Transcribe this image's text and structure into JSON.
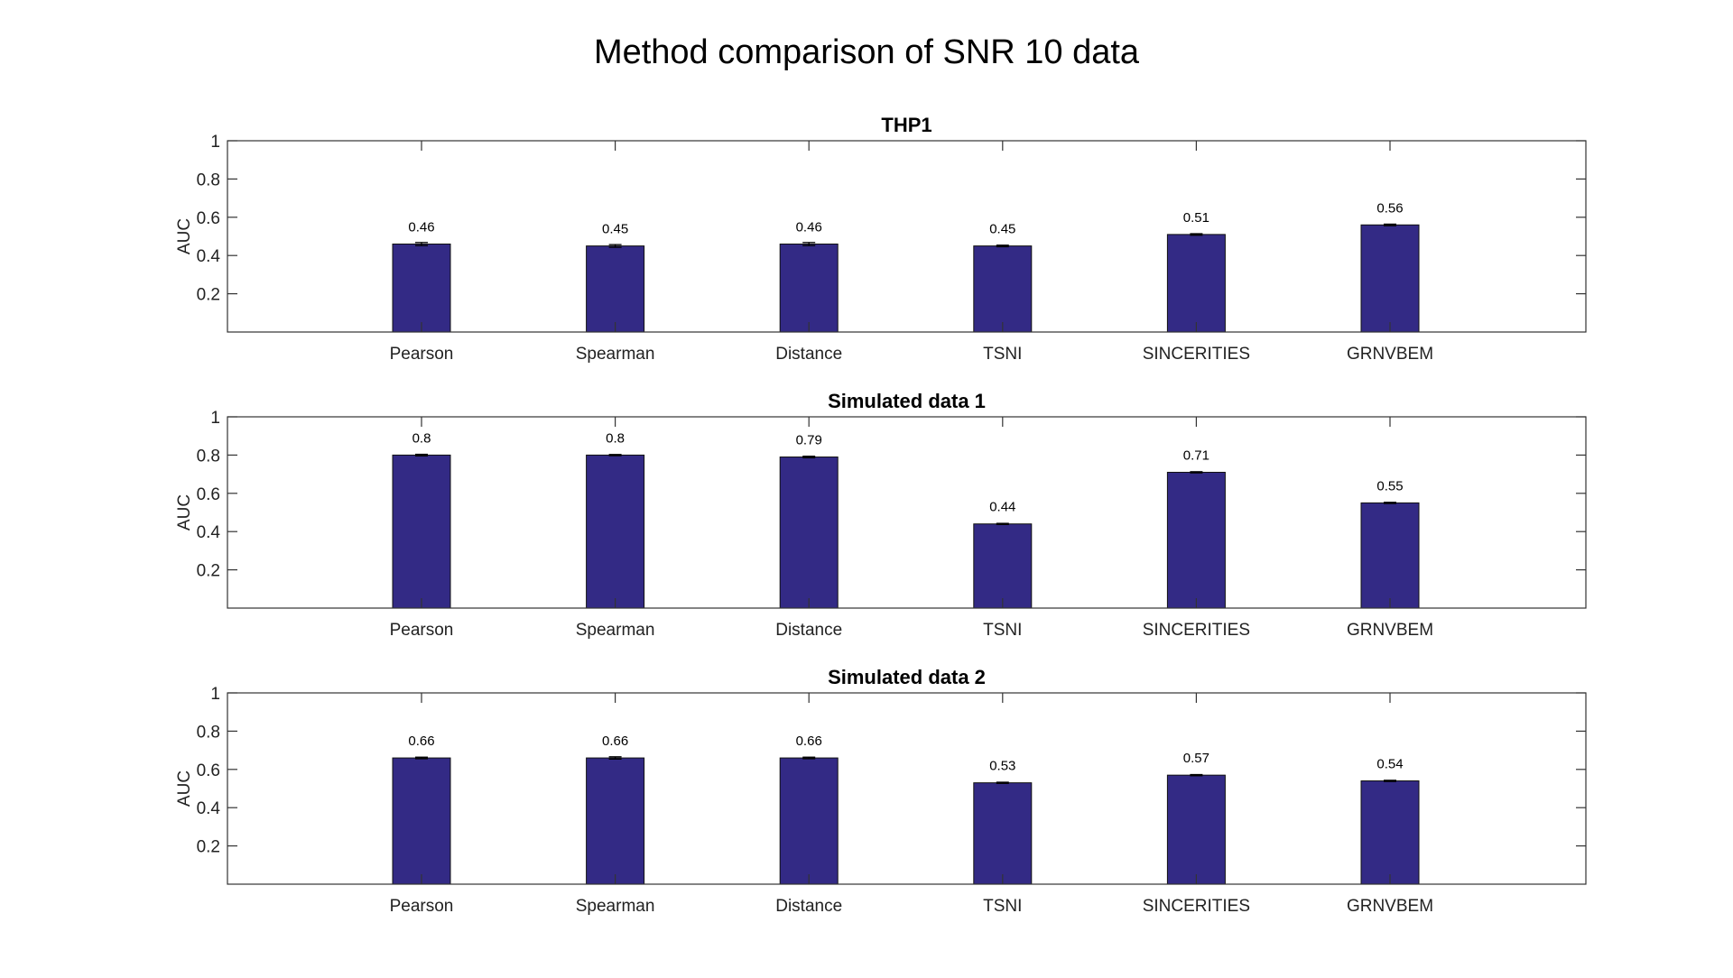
{
  "figure": {
    "title": "Method comparison of SNR 10 data"
  },
  "colors": {
    "bar": "#332a85"
  },
  "chart_data": [
    {
      "type": "bar",
      "title": "THP1",
      "xlabel": "",
      "ylabel": "AUC",
      "categories": [
        "Pearson",
        "Spearman",
        "Distance",
        "TSNI",
        "SINCERITIES",
        "GRNVBEM"
      ],
      "values": [
        0.46,
        0.45,
        0.46,
        0.45,
        0.51,
        0.56
      ],
      "data_labels": [
        "0.46",
        "0.45",
        "0.46",
        "0.45",
        "0.51",
        "0.56"
      ],
      "error": [
        0.008,
        0.007,
        0.008,
        0.004,
        0.004,
        0.004
      ],
      "ylim": [
        0,
        1
      ],
      "yticks": [
        0.2,
        0.4,
        0.6,
        0.8,
        1
      ],
      "ytick_labels": [
        "0.2",
        "0.4",
        "0.6",
        "0.8",
        "1"
      ],
      "grid": false,
      "legend": "none"
    },
    {
      "type": "bar",
      "title": "Simulated data 1",
      "xlabel": "",
      "ylabel": "AUC",
      "categories": [
        "Pearson",
        "Spearman",
        "Distance",
        "TSNI",
        "SINCERITIES",
        "GRNVBEM"
      ],
      "values": [
        0.8,
        0.8,
        0.79,
        0.44,
        0.71,
        0.55
      ],
      "data_labels": [
        "0.8",
        "0.8",
        "0.79",
        "0.44",
        "0.71",
        "0.55"
      ],
      "error": [
        0.004,
        0.003,
        0.004,
        0.003,
        0.003,
        0.003
      ],
      "ylim": [
        0,
        1
      ],
      "yticks": [
        0.2,
        0.4,
        0.6,
        0.8,
        1
      ],
      "ytick_labels": [
        "0.2",
        "0.4",
        "0.6",
        "0.8",
        "1"
      ],
      "grid": false,
      "legend": "none"
    },
    {
      "type": "bar",
      "title": "Simulated data 2",
      "xlabel": "",
      "ylabel": "AUC",
      "categories": [
        "Pearson",
        "Spearman",
        "Distance",
        "TSNI",
        "SINCERITIES",
        "GRNVBEM"
      ],
      "values": [
        0.66,
        0.66,
        0.66,
        0.53,
        0.57,
        0.54
      ],
      "data_labels": [
        "0.66",
        "0.66",
        "0.66",
        "0.53",
        "0.57",
        "0.54"
      ],
      "error": [
        0.004,
        0.006,
        0.004,
        0.003,
        0.003,
        0.003
      ],
      "ylim": [
        0,
        1
      ],
      "yticks": [
        0.2,
        0.4,
        0.6,
        0.8,
        1
      ],
      "ytick_labels": [
        "0.2",
        "0.4",
        "0.6",
        "0.8",
        "1"
      ],
      "grid": false,
      "legend": "none"
    }
  ]
}
